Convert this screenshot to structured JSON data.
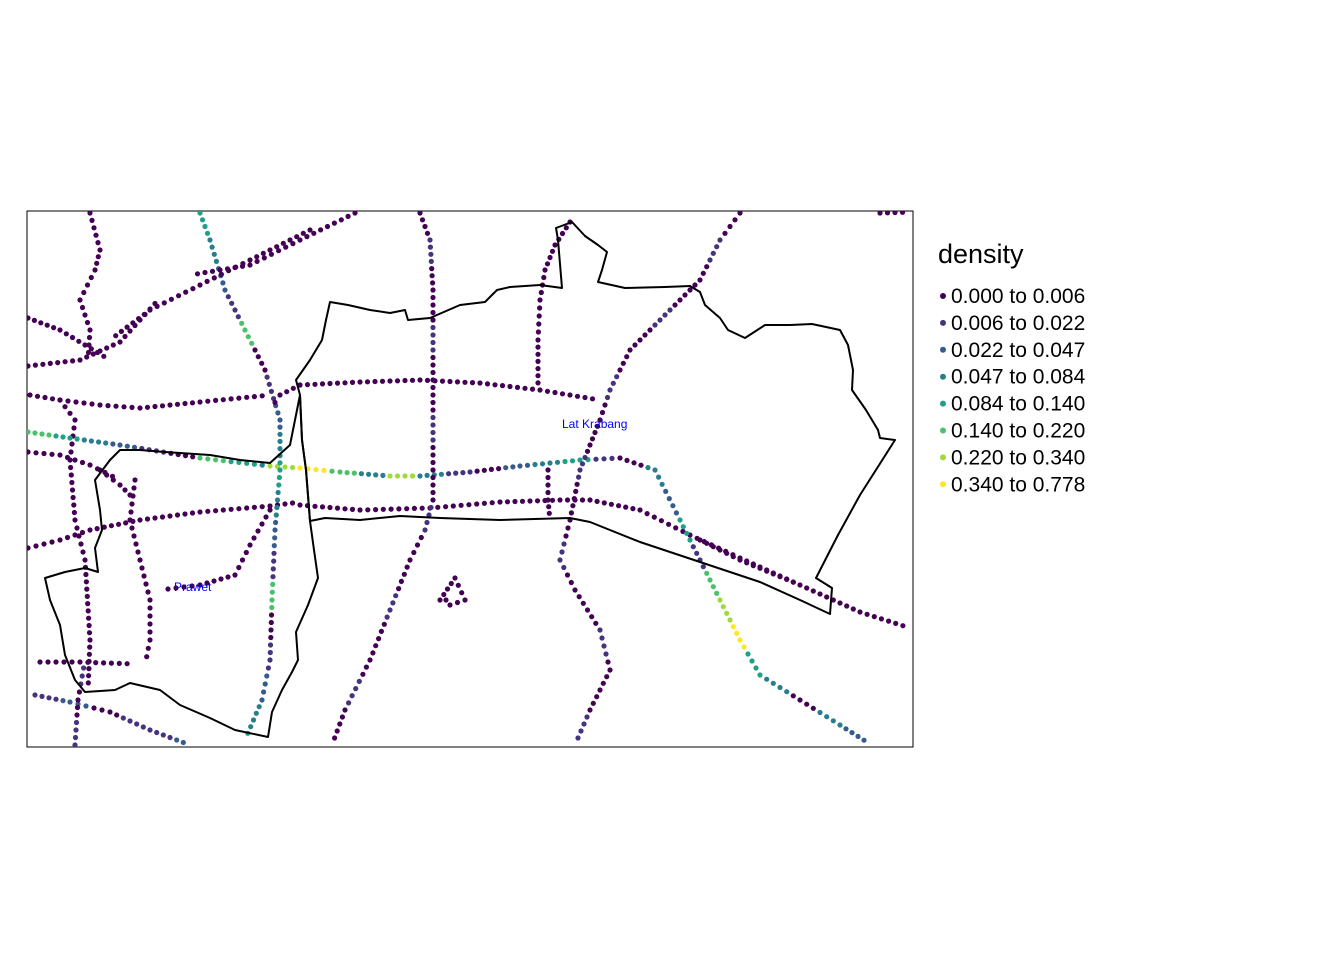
{
  "legend": {
    "title": "density",
    "classes": [
      {
        "label": "0.000 to 0.006",
        "color": "#440154"
      },
      {
        "label": "0.006 to 0.022",
        "color": "#46337e"
      },
      {
        "label": "0.022 to 0.047",
        "color": "#365c8d"
      },
      {
        "label": "0.047 to 0.084",
        "color": "#277f8e"
      },
      {
        "label": "0.084 to 0.140",
        "color": "#1fa187"
      },
      {
        "label": "0.140 to 0.220",
        "color": "#4ac16d"
      },
      {
        "label": "0.220 to 0.340",
        "color": "#a0da39"
      },
      {
        "label": "0.340 to 0.778",
        "color": "#fde725"
      }
    ]
  },
  "places": [
    {
      "name": "Lat Krabang",
      "color": "#0000ff"
    },
    {
      "name": "Prawet",
      "color": "#0000ff"
    }
  ],
  "colors": {
    "boundary": "#000000",
    "frame": "#000000",
    "label": "#0000ff"
  }
}
